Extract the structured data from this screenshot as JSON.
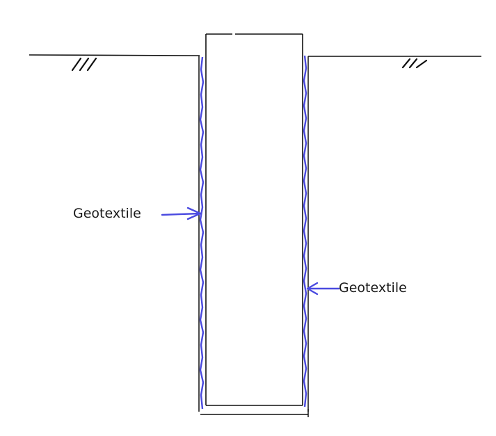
{
  "labels": {
    "left": "Geotextile",
    "right": "Geotextile"
  },
  "colors": {
    "line": "#111111",
    "geotextile": "#4a4ae0"
  }
}
